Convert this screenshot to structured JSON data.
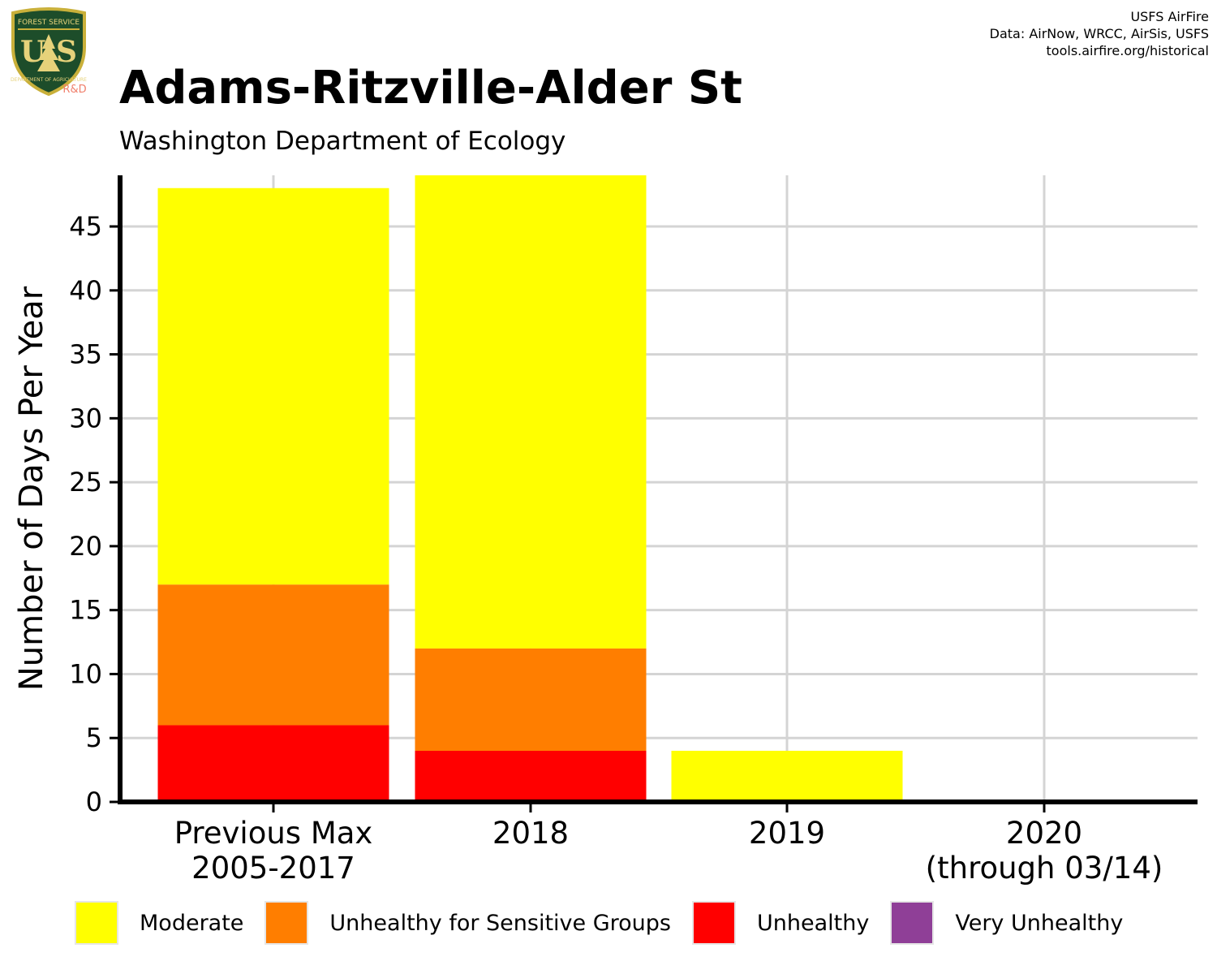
{
  "logo": {
    "top_text": "FOREST SERVICE",
    "letters": "U S",
    "bottom_text": "DEPARTMENT OF AGRICULTURE",
    "rd": "R&D"
  },
  "credits": [
    "USFS AirFire",
    "Data: AirNow, WRCC, AirSis, USFS",
    "tools.airfire.org/historical"
  ],
  "chart_data": {
    "type": "bar",
    "stacked": true,
    "title": "Adams-Ritzville-Alder St",
    "subtitle": "Washington Department of Ecology",
    "ylabel": "Number of Days Per Year",
    "xlabel": "",
    "ylim": [
      0,
      49
    ],
    "yticks": [
      0,
      5,
      10,
      15,
      20,
      25,
      30,
      35,
      40,
      45
    ],
    "grid": true,
    "legend_position": "bottom",
    "categories": [
      [
        "Previous Max",
        "2005-2017"
      ],
      [
        "2018"
      ],
      [
        "2019"
      ],
      [
        "2020",
        "(through 03/14)"
      ]
    ],
    "series": [
      {
        "name": "Unhealthy",
        "color": "#ff0000",
        "values": [
          6,
          4,
          0,
          0
        ]
      },
      {
        "name": "Unhealthy for Sensitive Groups",
        "color": "#ff7e00",
        "values": [
          11,
          8,
          0,
          0
        ]
      },
      {
        "name": "Moderate",
        "color": "#ffff00",
        "values": [
          31,
          37,
          4,
          0
        ]
      },
      {
        "name": "Very Unhealthy",
        "color": "#8f3f97",
        "values": [
          0,
          0,
          0,
          0
        ]
      }
    ],
    "legend_order": [
      "Moderate",
      "Unhealthy for Sensitive Groups",
      "Unhealthy",
      "Very Unhealthy"
    ]
  }
}
